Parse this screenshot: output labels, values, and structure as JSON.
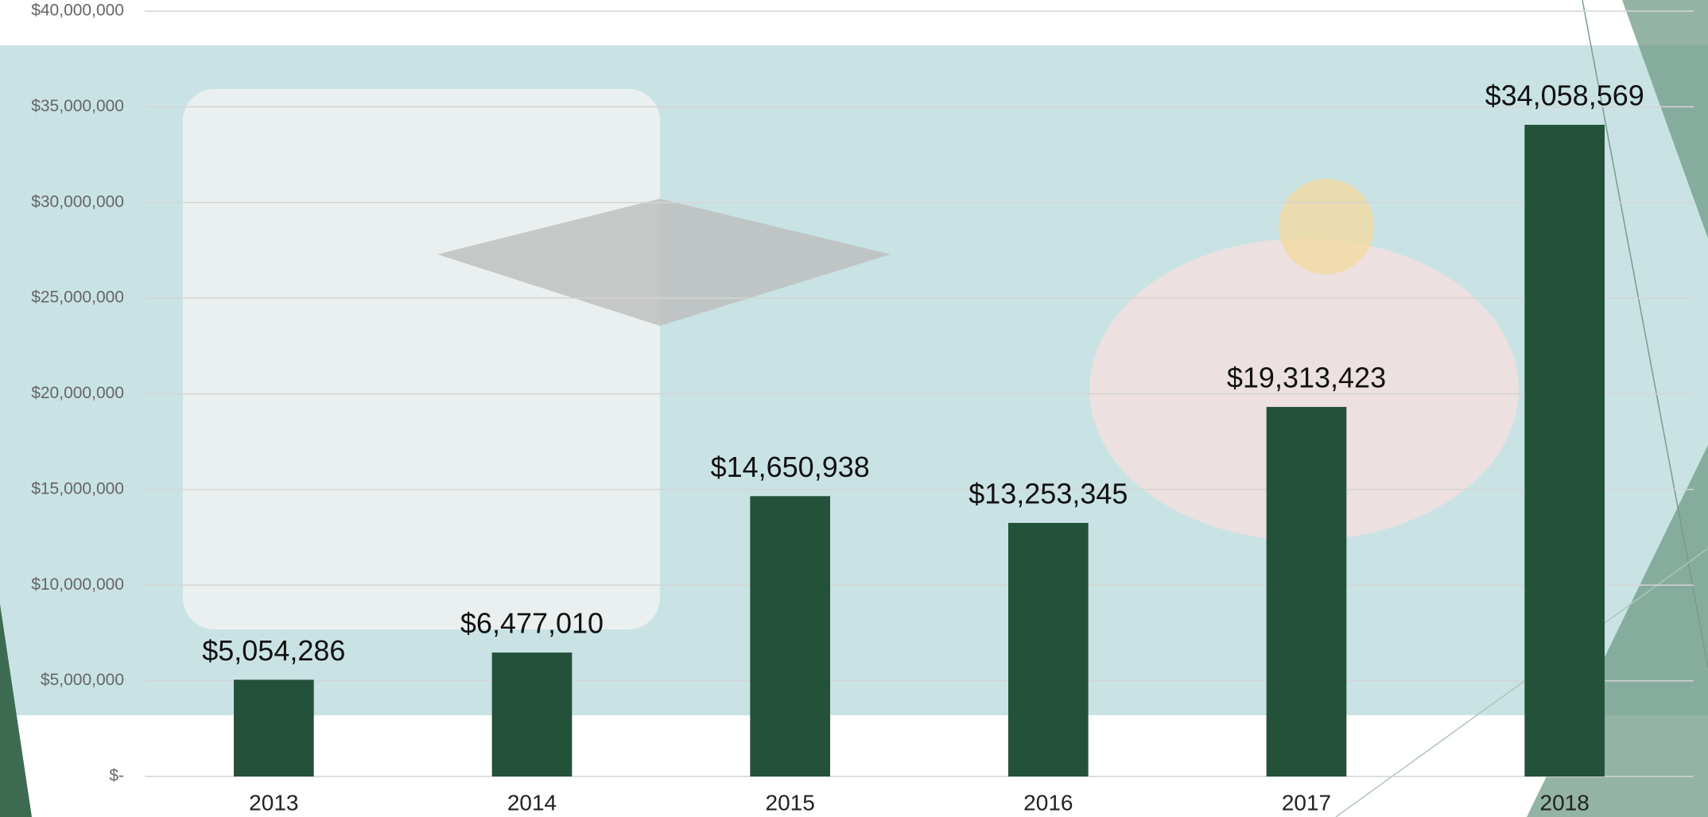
{
  "chart_data": {
    "type": "bar",
    "categories": [
      "2013",
      "2014",
      "2015",
      "2016",
      "2017",
      "2018"
    ],
    "values": [
      5054286,
      6477010,
      14650938,
      13253345,
      19313423,
      34058569
    ],
    "value_labels": [
      "$5,054,286",
      "$6,477,010",
      "$14,650,938",
      "$13,253,345",
      "$19,313,423",
      "$34,058,569"
    ],
    "color": "#24513a",
    "ylim": [
      0,
      40000000
    ],
    "yticks": [
      {
        "value": 0,
        "label": "$-"
      },
      {
        "value": 5000000,
        "label": "$5,000,000"
      },
      {
        "value": 10000000,
        "label": "$10,000,000"
      },
      {
        "value": 15000000,
        "label": "$15,000,000"
      },
      {
        "value": 20000000,
        "label": "$20,000,000"
      },
      {
        "value": 25000000,
        "label": "$25,000,000"
      },
      {
        "value": 30000000,
        "label": "$30,000,000"
      },
      {
        "value": 35000000,
        "label": "$35,000,000"
      },
      {
        "value": 40000000,
        "label": "$40,000,000"
      }
    ],
    "grid": true
  }
}
